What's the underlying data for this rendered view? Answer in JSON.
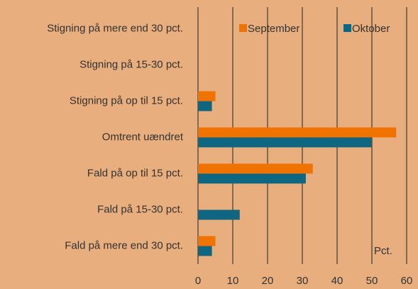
{
  "chart_data": {
    "type": "barh",
    "categories": [
      "Stigning på mere end 30 pct.",
      "Stigning på 15-30 pct.",
      "Stigning på op til 15 pct.",
      "Omtrent uændret",
      "Fald på op til 15 pct.",
      "Fald på 15-30 pct.",
      "Fald på mere end 30 pct."
    ],
    "series": [
      {
        "name": "September",
        "color": "#f07300",
        "values": [
          0,
          0,
          5,
          57,
          33,
          0,
          5
        ]
      },
      {
        "name": "Oktober",
        "color": "#0f6680",
        "values": [
          0,
          0,
          4,
          50,
          31,
          12,
          4
        ]
      }
    ],
    "xlim": [
      0,
      60
    ],
    "xticks": [
      0,
      10,
      20,
      30,
      40,
      50,
      60
    ],
    "grid": true,
    "legend": "upper right",
    "annotation": "Pct.",
    "background": "#e8ae7e"
  }
}
